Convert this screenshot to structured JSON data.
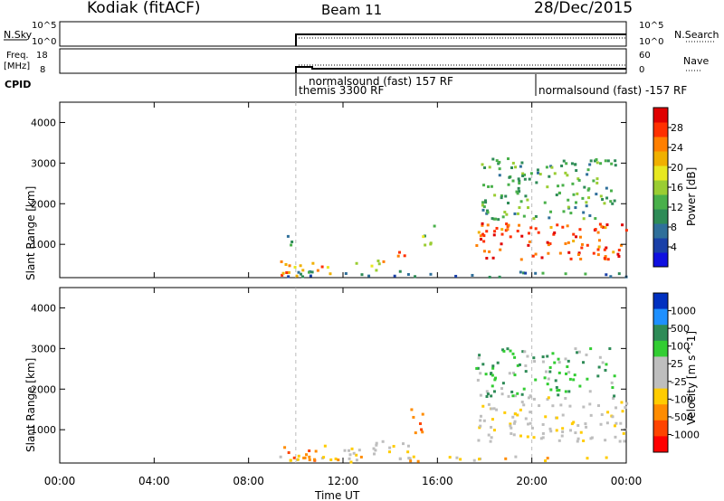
{
  "header": {
    "station": "Kodiak (fitACF)",
    "beam": "Beam 11",
    "date": "28/Dec/2015"
  },
  "left_labels": {
    "nsky": "N.Sky",
    "freq_line1": "Freq.",
    "freq_line2": "[MHz]",
    "cpid": "CPID"
  },
  "right_labels": {
    "nsearch": "N.Search",
    "nave": "Nave"
  },
  "scales": {
    "noise_top": "10^5",
    "noise_bottom": "10^0",
    "freq_top": "18",
    "freq_bottom": "8",
    "nave_top": "60",
    "nave_bottom": "0"
  },
  "cpid_labels": {
    "a": "normalsound (fast) 157 RF",
    "b": "themis 3300 RF",
    "c": "normalsound (fast) -157 RF"
  },
  "colors": {
    "power": [
      "#1010e0",
      "#1a40a8",
      "#2f6f9a",
      "#2e8b57",
      "#49b04a",
      "#9acd32",
      "#e8e820",
      "#f0b000",
      "#ff7f00",
      "#ff3000",
      "#e00000"
    ],
    "velocity": [
      "#ff0000",
      "#ff4400",
      "#ff8c00",
      "#ffcc00",
      "#bebebe",
      "#bebebe",
      "#32cd32",
      "#2e8b57",
      "#1e90ff",
      "#0030c0"
    ]
  },
  "chart_data": [
    {
      "type": "heatmap",
      "title": "",
      "xlabel": "Time UT",
      "ylabel": "Slant Range [km]",
      "x_ticks": [
        "00:00",
        "04:00",
        "08:00",
        "12:00",
        "16:00",
        "20:00",
        "00:00"
      ],
      "y_ticks": [
        "1000",
        "2000",
        "3000",
        "4000"
      ],
      "xlim_hours": [
        0,
        24
      ],
      "ylim_km": [
        180,
        4500
      ],
      "colorbar_label": "Power [dB]",
      "colorbar_ticks": [
        "4",
        "8",
        "12",
        "16",
        "20",
        "24",
        "28"
      ],
      "colorbar_range": [
        0,
        30
      ],
      "data_start_hour": 9.3,
      "regions": [
        {
          "t0": 9.3,
          "t1": 11.5,
          "r0": 200,
          "r1": 600,
          "level": 20
        },
        {
          "t0": 9.3,
          "t1": 9.8,
          "r0": 900,
          "r1": 1200,
          "level": 8
        },
        {
          "t0": 12.2,
          "t1": 13.6,
          "r0": 300,
          "r1": 600,
          "level": 16
        },
        {
          "t0": 13.6,
          "t1": 15.0,
          "r0": 400,
          "r1": 800,
          "level": 22
        },
        {
          "t0": 15.2,
          "t1": 16.0,
          "r0": 950,
          "r1": 1500,
          "level": 12
        },
        {
          "t0": 17.6,
          "t1": 24.0,
          "r0": 600,
          "r1": 1500,
          "level": 24
        },
        {
          "t0": 17.6,
          "t1": 23.5,
          "r0": 1600,
          "r1": 3100,
          "level": 10
        },
        {
          "t0": 9.3,
          "t1": 24.0,
          "r0": 180,
          "r1": 320,
          "level": 6
        }
      ]
    },
    {
      "type": "heatmap",
      "title": "",
      "xlabel": "Time UT",
      "ylabel": "Slant Range [km]",
      "x_ticks": [
        "00:00",
        "04:00",
        "08:00",
        "12:00",
        "16:00",
        "20:00",
        "00:00"
      ],
      "y_ticks": [
        "1000",
        "2000",
        "3000",
        "4000"
      ],
      "xlim_hours": [
        0,
        24
      ],
      "ylim_km": [
        180,
        4500
      ],
      "colorbar_label": "Velocity [m s^-1]",
      "colorbar_ticks": [
        "1000",
        "500",
        "100",
        "25",
        "-25",
        "-100",
        "-500",
        "-1000"
      ],
      "data_start_hour": 9.3,
      "regions": [
        {
          "t0": 9.3,
          "t1": 11.5,
          "r0": 200,
          "r1": 600,
          "level": 2
        },
        {
          "t0": 12.0,
          "t1": 15.0,
          "r0": 350,
          "r1": 700,
          "level": 4
        },
        {
          "t0": 14.8,
          "t1": 15.5,
          "r0": 900,
          "r1": 1500,
          "level": 2
        },
        {
          "t0": 17.6,
          "t1": 24.0,
          "r0": 700,
          "r1": 1800,
          "level": 4
        },
        {
          "t0": 17.6,
          "t1": 23.5,
          "r0": 1800,
          "r1": 3000,
          "level": 6
        },
        {
          "t0": 9.3,
          "t1": 24.0,
          "r0": 180,
          "r1": 330,
          "level": 3
        }
      ]
    }
  ]
}
